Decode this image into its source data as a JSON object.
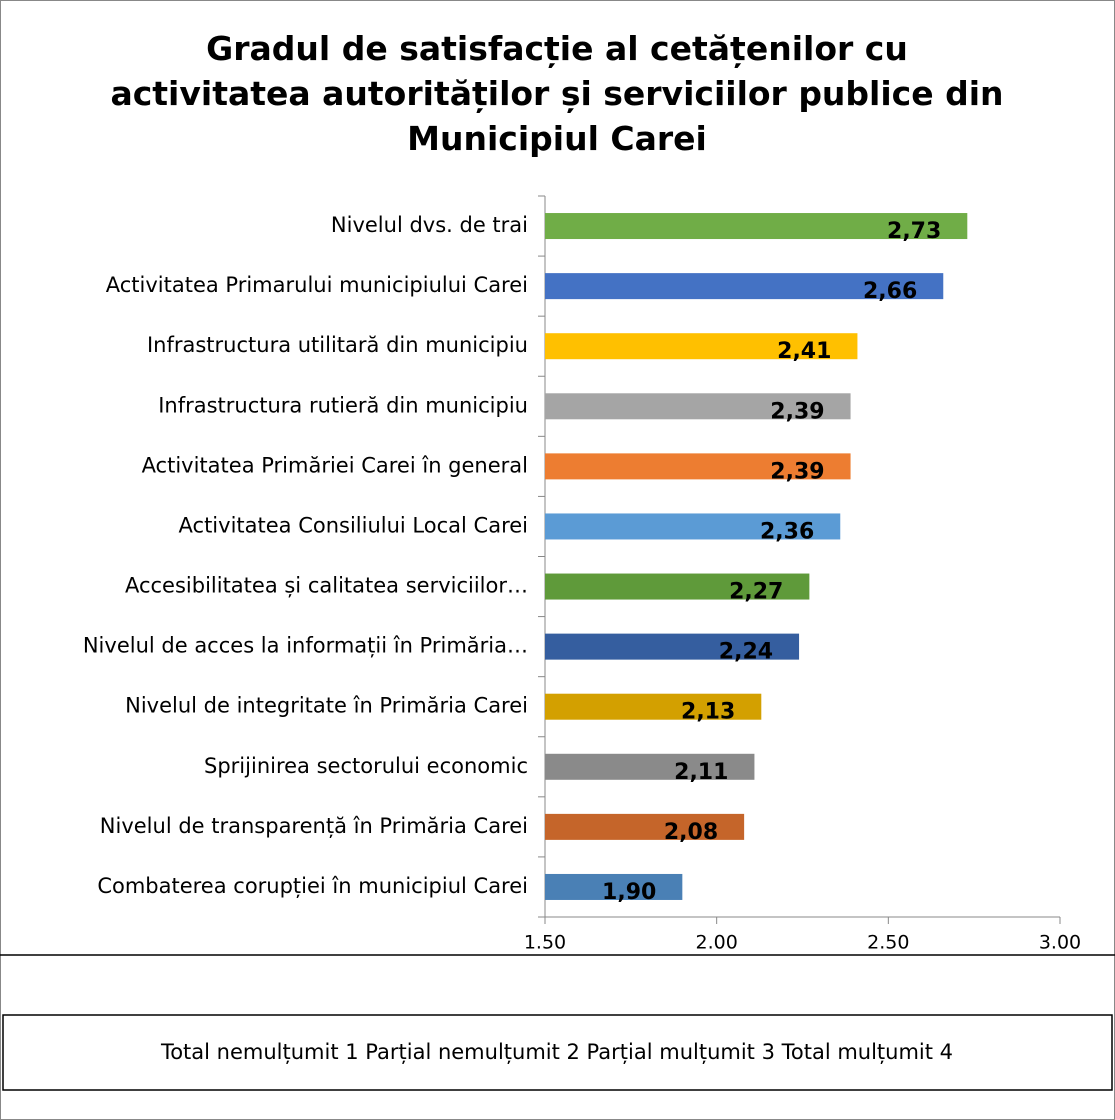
{
  "chart_data": {
    "type": "bar",
    "orientation": "horizontal",
    "title": "Gradul de satisfacție al cetățenilor cu activitatea autorităților și serviciilor publice din Municipiul Carei",
    "categories": [
      "Nivelul dvs. de trai",
      "Activitatea Primarului municipiului Carei",
      "Infrastructura utilitară din municipiu",
      "Infrastructura rutieră din municipiu",
      "Activitatea Primăriei Carei în general",
      "Activitatea Consiliului Local Carei",
      "Accesibilitatea și calitatea serviciilor…",
      "Nivelul de acces la informații în Primăria…",
      "Nivelul de integritate în Primăria Carei",
      "Sprijinirea sectorului economic",
      "Nivelul de transparență în Primăria Carei",
      "Combaterea corupției în municipiul Carei"
    ],
    "values": [
      2.73,
      2.66,
      2.41,
      2.39,
      2.39,
      2.36,
      2.27,
      2.24,
      2.13,
      2.11,
      2.08,
      1.9
    ],
    "value_labels": [
      "2,73",
      "2,66",
      "2,41",
      "2,39",
      "2,39",
      "2,36",
      "2,27",
      "2,24",
      "2,13",
      "2,11",
      "2,08",
      "1,90"
    ],
    "colors": [
      "#70ad47",
      "#4472c4",
      "#ffc000",
      "#a5a5a5",
      "#ed7d31",
      "#5b9bd5",
      "#5f9a3a",
      "#355e9f",
      "#d3a000",
      "#8a8a8a",
      "#c5652a",
      "#4a80b5"
    ],
    "xlim": [
      1.5,
      3.0
    ],
    "xticks": [
      {
        "value": 1.5,
        "label": "1.50"
      },
      {
        "value": 2.0,
        "label": "2.00"
      },
      {
        "value": 2.5,
        "label": "2.50"
      },
      {
        "value": 3.0,
        "label": "3.00"
      }
    ],
    "annotation": "Total nemulțumit 1 Parțial nemulțumit 2 Parțial mulțumit 3 Total mulțumit 4"
  }
}
